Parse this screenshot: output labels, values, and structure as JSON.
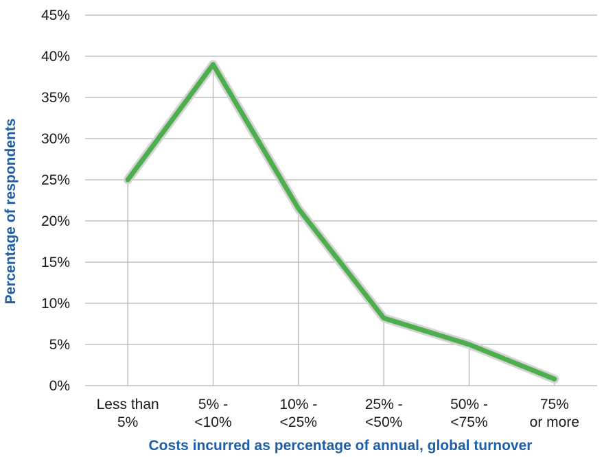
{
  "chart_data": {
    "type": "line",
    "title": "",
    "xlabel": "Costs incurred as percentage of annual, global turnover",
    "ylabel": "Percentage of respondents",
    "categories": [
      [
        "Less than",
        "5%"
      ],
      [
        "5% -",
        "<10%"
      ],
      [
        "10% -",
        "<25%"
      ],
      [
        "25% -",
        "<50%"
      ],
      [
        "50% -",
        "<75%"
      ],
      [
        "75%",
        "or more"
      ]
    ],
    "values": [
      25,
      39,
      21.5,
      8.2,
      5,
      0.8
    ],
    "y_ticks": [
      "0%",
      "5%",
      "10%",
      "15%",
      "20%",
      "25%",
      "30%",
      "35%",
      "40%",
      "45%"
    ],
    "ylim": [
      0,
      45
    ],
    "grid": true,
    "colors": {
      "line": "#4cae4c",
      "line_halo": "#d4d4d4",
      "grid": "#b3b3b3",
      "axis_title": "#1f5fa9"
    }
  }
}
